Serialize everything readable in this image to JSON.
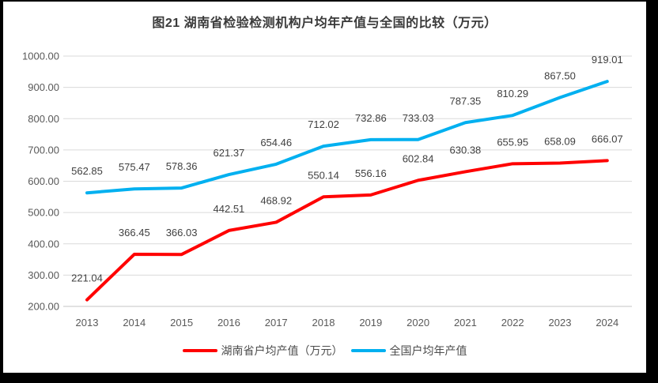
{
  "title": "图21 湖南省检验检测机构户均年产值与全国的比较（万元）",
  "chart_data": {
    "type": "line",
    "title": "图21 湖南省检验检测机构户均年产值与全国的比较（万元）",
    "categories": [
      "2013",
      "2014",
      "2015",
      "2016",
      "2017",
      "2018",
      "2019",
      "2020",
      "2021",
      "2022",
      "2023",
      "2024"
    ],
    "series": [
      {
        "name": "湖南省户均产值（万元）",
        "color": "#FF0000",
        "values": [
          221.04,
          366.45,
          366.03,
          442.51,
          468.92,
          550.14,
          556.16,
          602.84,
          630.38,
          655.95,
          658.09,
          666.07
        ]
      },
      {
        "name": "全国户均年产值",
        "color": "#00B0F0",
        "values": [
          562.85,
          575.47,
          578.36,
          621.37,
          654.46,
          712.02,
          732.86,
          733.03,
          787.35,
          810.29,
          867.5,
          919.01
        ]
      }
    ],
    "ylim": [
      200,
      1000
    ],
    "ytick_step": 100,
    "ytick_labels": [
      "200.00",
      "300.00",
      "400.00",
      "500.00",
      "600.00",
      "700.00",
      "800.00",
      "900.00",
      "1000.00"
    ],
    "xlabel": "",
    "ylabel": "",
    "grid": "horizontal",
    "legend_position": "bottom",
    "data_labels": "above",
    "data_label_format": "0.00"
  },
  "colors": {
    "frame": "#000000",
    "background": "#FFFFFF",
    "gridline": "#DADADA",
    "axis_line": "#C6C6C6",
    "axis_text": "#595959",
    "data_label_text": "#404040",
    "hunan_line": "#FF0000",
    "national_line": "#00B0F0"
  }
}
